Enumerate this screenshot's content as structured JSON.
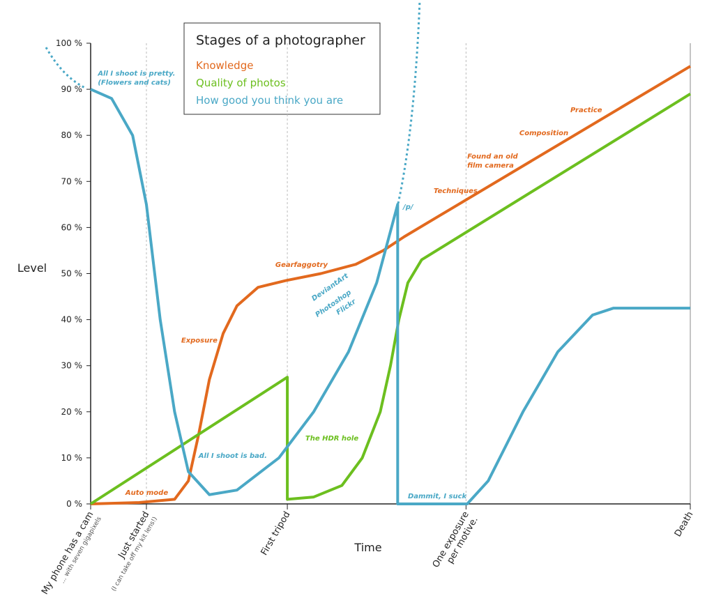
{
  "chart_data": {
    "type": "line",
    "legend_title": "Stages of a photographer",
    "y_label": "Level",
    "x_label": "Time",
    "xlim": [
      0,
      100
    ],
    "ylim": [
      0,
      100
    ],
    "yticks": [
      {
        "value": 0,
        "label": "0 %"
      },
      {
        "value": 10,
        "label": "10 %"
      },
      {
        "value": 20,
        "label": "20 %"
      },
      {
        "value": 30,
        "label": "30 %"
      },
      {
        "value": 40,
        "label": "40 %"
      },
      {
        "value": 50,
        "label": "50 %"
      },
      {
        "value": 60,
        "label": "60 %"
      },
      {
        "value": 70,
        "label": "70 %"
      },
      {
        "value": 80,
        "label": "80 %"
      },
      {
        "value": 90,
        "label": "90 %"
      },
      {
        "value": 100,
        "label": "100 %"
      }
    ],
    "xticks": [
      {
        "value": 0,
        "label": [
          "My phone has a cam"
        ],
        "note": "... with seven gigapixels"
      },
      {
        "value": 9.3,
        "label": [
          "Just started"
        ],
        "note": "(I can take off my kit lens!)"
      },
      {
        "value": 32.8,
        "label": [
          "First tripod"
        ]
      },
      {
        "value": 62.6,
        "label": [
          "One exposure",
          "per motive."
        ]
      },
      {
        "value": 100,
        "label": [
          "Death"
        ]
      }
    ],
    "grid": true,
    "series": [
      {
        "name": "Knowledge",
        "color": "#e2691e",
        "x": [
          0,
          8.1,
          14.0,
          16.3,
          18.0,
          19.8,
          22.1,
          24.4,
          27.9,
          32.6,
          38.4,
          44.2,
          48.8,
          52.3,
          100
        ],
        "values": [
          0,
          0.3,
          1,
          5,
          15,
          27,
          37,
          43,
          47,
          48.5,
          50,
          52,
          55,
          58,
          95
        ],
        "annotations": [
          {
            "text": [
              "Auto mode"
            ],
            "x": 5.8,
            "y": 2
          },
          {
            "text": [
              "Exposure"
            ],
            "x": 15.1,
            "y": 35
          },
          {
            "text": [
              "Gearfaggotry"
            ],
            "x": 30.8,
            "y": 51.4
          },
          {
            "text": [
              "Techniques"
            ],
            "x": 57.2,
            "y": 67.5
          },
          {
            "text": [
              "Found an old",
              "film camera"
            ],
            "x": 62.8,
            "y": 75
          },
          {
            "text": [
              "Composition"
            ],
            "x": 71.5,
            "y": 80
          },
          {
            "text": [
              "Practice"
            ],
            "x": 80,
            "y": 85
          }
        ]
      },
      {
        "name": "Quality of photos",
        "color": "#6cbf1f",
        "x": [
          0,
          32.8,
          32.8,
          37.2,
          41.9,
          45.3,
          48.3,
          50.0,
          51.4,
          52.9,
          55.2,
          100
        ],
        "values": [
          0,
          27.5,
          1,
          1.5,
          4,
          10,
          20,
          30,
          40,
          48,
          53,
          89
        ],
        "annotations": [
          {
            "text": [
              "The HDR hole"
            ],
            "x": 35.8,
            "y": 13.8
          }
        ]
      },
      {
        "name": "How good you think you are",
        "color": "#4aa8c6",
        "x": [
          0,
          3.5,
          7.0,
          9.3,
          11.6,
          14.0,
          16.3,
          19.8,
          24.4,
          31.4,
          37.2,
          43.0,
          47.7,
          51.2,
          51.2,
          62.8,
          66.3,
          72.1,
          77.9,
          83.7,
          87.2,
          100
        ],
        "values": [
          90,
          88,
          80,
          65,
          40,
          20,
          7,
          2,
          3,
          10,
          20,
          33,
          48,
          65,
          0,
          0,
          5,
          20,
          33,
          41,
          42.5,
          42.5
        ],
        "annotations": [
          {
            "text": [
              "All I shoot is pretty.",
              "(Flowers and cats)"
            ],
            "x": 1.2,
            "y": 93
          },
          {
            "text": [
              "All I shoot is bad."
            ],
            "x": 18,
            "y": 10
          },
          {
            "text": [
              "DeviantArt"
            ],
            "x": 37.2,
            "y": 44
          },
          {
            "text": [
              "Photoshop"
            ],
            "x": 37.8,
            "y": 40.5
          },
          {
            "text": [
              "Flickr"
            ],
            "x": 41.3,
            "y": 41
          },
          {
            "text": [
              "/p/"
            ],
            "x": 52.1,
            "y": 64
          },
          {
            "text": [
              "Dammit, I suck"
            ],
            "x": 52.9,
            "y": 1.2
          }
        ]
      }
    ]
  }
}
